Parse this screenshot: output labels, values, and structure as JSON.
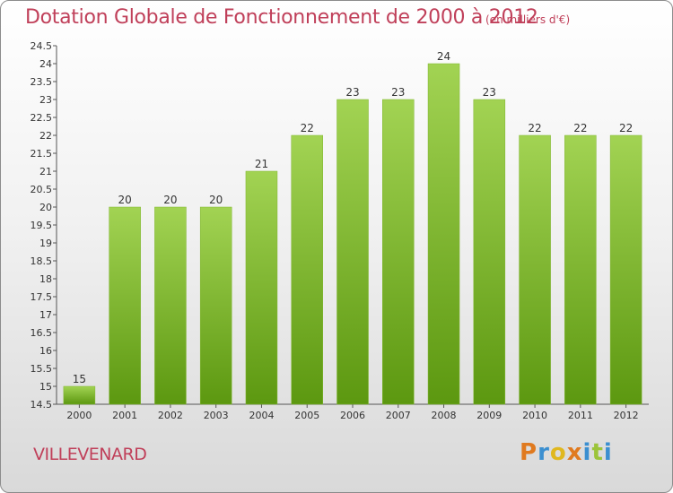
{
  "title": "Dotation Globale de Fonctionnement de 2000 à 2012",
  "subtitle": "(en milliers d'€)",
  "town": "VILLEVENARD",
  "logo": {
    "text": "Proxiti",
    "colors": [
      "#e07a1f",
      "#3b8fd0",
      "#e0b81f",
      "#e07a1f",
      "#3b8fd0",
      "#9cc43a",
      "#3b8fd0"
    ]
  },
  "colors": {
    "bar_top": "#9fd04f",
    "bar_bottom": "#5e9a12",
    "title": "#c0405a"
  },
  "chart_data": {
    "type": "bar",
    "title": "Dotation Globale de Fonctionnement de 2000 à 2012",
    "subtitle": "(en milliers d'€)",
    "xlabel": "",
    "ylabel": "",
    "ylim": [
      14.5,
      24.5
    ],
    "yticks": [
      14.5,
      15,
      15.5,
      16,
      16.5,
      17,
      17.5,
      18,
      18.5,
      19,
      19.5,
      20,
      20.5,
      21,
      21.5,
      22,
      22.5,
      23,
      23.5,
      24,
      24.5
    ],
    "categories": [
      "2000",
      "2001",
      "2002",
      "2003",
      "2004",
      "2005",
      "2006",
      "2007",
      "2008",
      "2009",
      "2010",
      "2011",
      "2012"
    ],
    "values": [
      15,
      20,
      20,
      20,
      21,
      22,
      23,
      23,
      24,
      23,
      22,
      22,
      22
    ],
    "grid": false,
    "legend": "none"
  }
}
